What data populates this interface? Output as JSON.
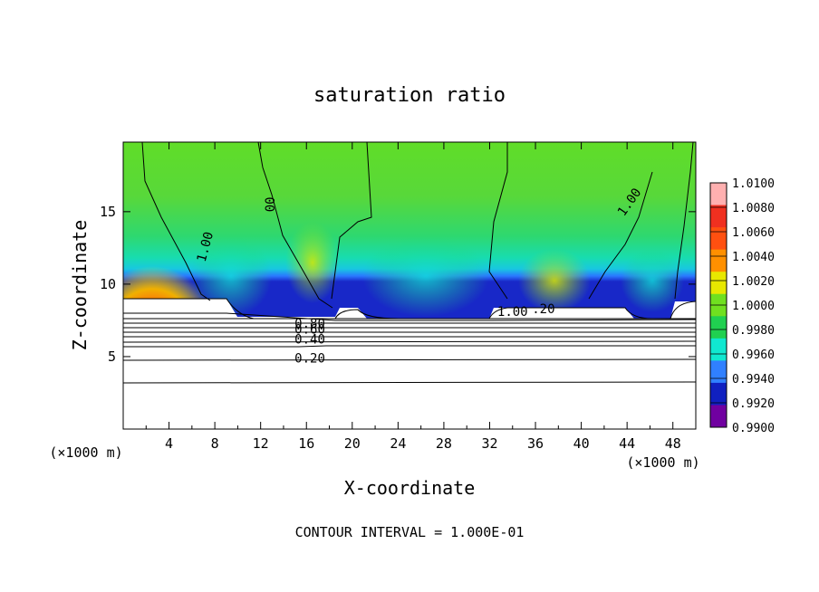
{
  "chart_data": {
    "type": "heatmap",
    "title": "saturation ratio",
    "xlabel": "X-coordinate",
    "ylabel": "Z-coordinate",
    "x_unit": "(×1000 m)",
    "y_unit": "(×1000 m)",
    "xlim": [
      0,
      50
    ],
    "ylim": [
      0,
      19.8
    ],
    "x_ticks": [
      4,
      8,
      12,
      16,
      20,
      24,
      28,
      32,
      36,
      40,
      44,
      48
    ],
    "y_ticks": [
      5,
      10,
      15
    ],
    "footer": "CONTOUR INTERVAL = 1.000E-01",
    "colorbar": {
      "labels": [
        "1.0100",
        "1.0080",
        "1.0060",
        "1.0040",
        "1.0020",
        "1.0000",
        "0.9980",
        "0.9960",
        "0.9940",
        "0.9920",
        "0.9900"
      ],
      "colors": [
        "#ffb0b0",
        "#f03020",
        "#ff5010",
        "#ff9000",
        "#e8e800",
        "#70e020",
        "#20d050",
        "#10e8d0",
        "#3080ff",
        "#1020c0",
        "#7000a0"
      ]
    },
    "contour_labels": [
      {
        "text": "1.00",
        "x": 7.5,
        "z": 12.5,
        "rotate": -75
      },
      {
        "text": "00",
        "x": 13.2,
        "z": 15.5,
        "rotate": -90
      },
      {
        "text": "1.00",
        "x": 44.5,
        "z": 15.5,
        "rotate": -55
      },
      {
        "text": "1.00",
        "x": 34.0,
        "z": 7.8,
        "rotate": 0
      },
      {
        "text": ".20",
        "x": 36.7,
        "z": 8.0,
        "rotate": 0
      },
      {
        "text": "0.80",
        "x": 16.3,
        "z": 7.0,
        "rotate": 0
      },
      {
        "text": "0.60",
        "x": 16.3,
        "z": 6.6,
        "rotate": 0
      },
      {
        "text": "0.40",
        "x": 16.3,
        "z": 5.9,
        "rotate": 0
      },
      {
        "text": "0.20",
        "x": 16.3,
        "z": 4.6,
        "rotate": 0
      }
    ]
  }
}
